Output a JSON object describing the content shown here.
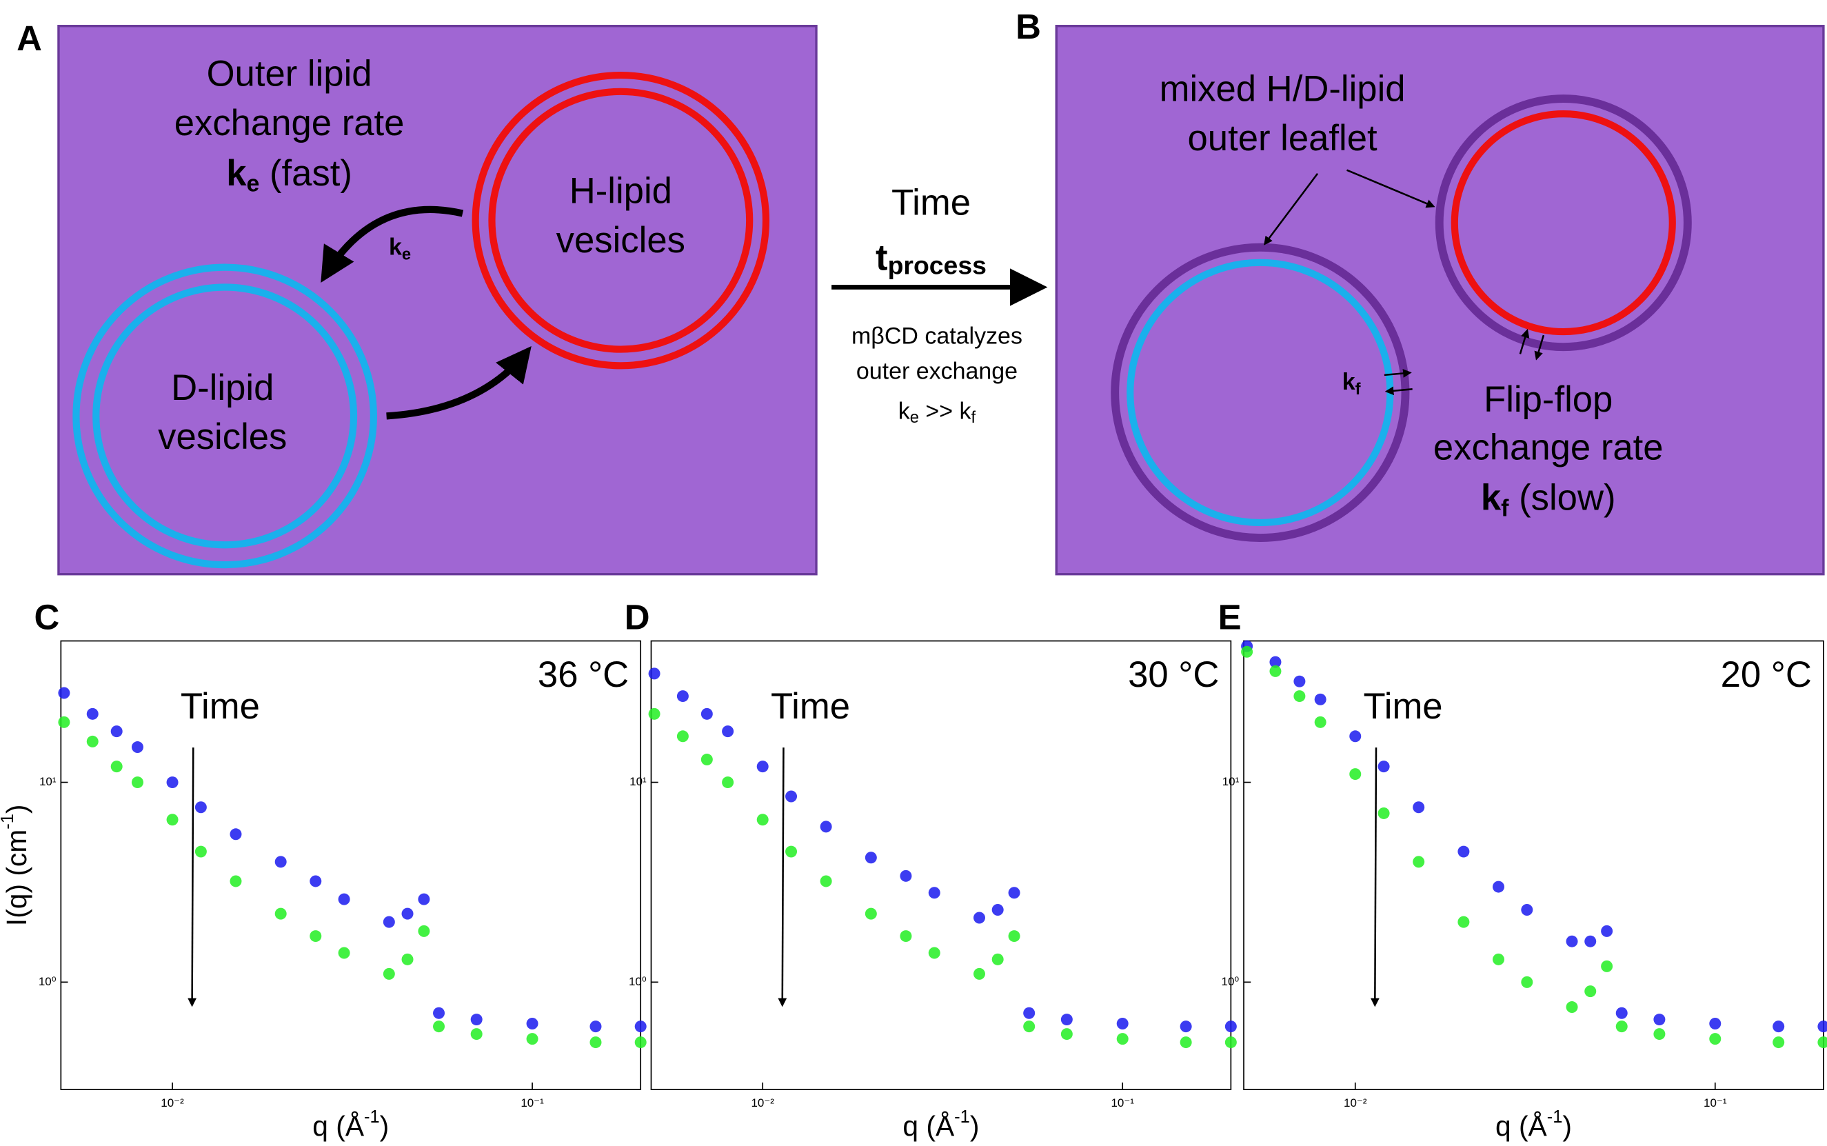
{
  "panel_a": {
    "label": "A",
    "title_lines": [
      "Outer lipid",
      "exchange rate"
    ],
    "rate": {
      "symbol": "k",
      "subscript": "e",
      "text": " (fast)"
    },
    "arrow_label": {
      "symbol": "k",
      "subscript": "e"
    },
    "vesicles": [
      {
        "lines": [
          "H-lipid",
          "vesicles"
        ]
      },
      {
        "lines": [
          "D-lipid",
          "vesicles"
        ]
      }
    ]
  },
  "process": {
    "title": "Time",
    "symbol": "t",
    "subscript": "process",
    "notes": [
      "mβCD catalyzes",
      "outer exchange"
    ],
    "relation": {
      "left": "k",
      "left_sub": "e",
      "op": " >> ",
      "right": "k",
      "right_sub": "f"
    }
  },
  "panel_b": {
    "label": "B",
    "leaflet_lines": [
      "mixed H/D-lipid",
      "outer leaflet"
    ],
    "arrow_label": {
      "symbol": "k",
      "subscript": "f"
    },
    "rate_lines": [
      "Flip-flop",
      "exchange rate"
    ],
    "rate": {
      "symbol": "k",
      "subscript": "f",
      "text": " (slow)"
    }
  },
  "chart_data": [
    {
      "type": "scatter",
      "panel_label": "C",
      "annotation": "Time",
      "temperature": "36 °C",
      "ylabel": {
        "text": "I(q) (cm",
        "sup": "-1",
        "end": ")"
      },
      "xlabel": {
        "text": "q (Å",
        "sup": "-1",
        "end": ")"
      },
      "x": [
        0.005,
        0.006,
        0.007,
        0.008,
        0.01,
        0.012,
        0.015,
        0.02,
        0.025,
        0.03,
        0.04,
        0.045,
        0.05,
        0.055,
        0.07,
        0.1,
        0.15,
        0.2
      ],
      "series": [
        {
          "color": "#1a1aee",
          "values": [
            28,
            22,
            18,
            15,
            10,
            7.5,
            5.5,
            4,
            3.2,
            2.6,
            2,
            2.2,
            2.6,
            0.7,
            0.65,
            0.62,
            0.6,
            0.6
          ]
        },
        {
          "color": "#22ee22",
          "values": [
            20,
            16,
            12,
            10,
            6.5,
            4.5,
            3.2,
            2.2,
            1.7,
            1.4,
            1.1,
            1.3,
            1.8,
            0.6,
            0.55,
            0.52,
            0.5,
            0.5
          ]
        }
      ],
      "xlim": [
        0.0049,
        0.2
      ],
      "ylim": [
        0.29,
        51
      ],
      "xlog": true,
      "ylog": true,
      "xticks": [
        {
          "value": 0.01,
          "label": "10⁻²"
        },
        {
          "value": 0.1,
          "label": "10⁻¹"
        }
      ],
      "yticks": [
        {
          "value": 1,
          "label": "10⁰"
        },
        {
          "value": 10,
          "label": "10¹"
        }
      ]
    },
    {
      "type": "scatter",
      "panel_label": "D",
      "annotation": "Time",
      "temperature": "30 °C",
      "xlabel": {
        "text": "q (Å",
        "sup": "-1",
        "end": ")"
      },
      "x": [
        0.005,
        0.006,
        0.007,
        0.008,
        0.01,
        0.012,
        0.015,
        0.02,
        0.025,
        0.03,
        0.04,
        0.045,
        0.05,
        0.055,
        0.07,
        0.1,
        0.15,
        0.2
      ],
      "series": [
        {
          "color": "#1a1aee",
          "values": [
            35,
            27,
            22,
            18,
            12,
            8.5,
            6,
            4.2,
            3.4,
            2.8,
            2.1,
            2.3,
            2.8,
            0.7,
            0.65,
            0.62,
            0.6,
            0.6
          ]
        },
        {
          "color": "#22ee22",
          "values": [
            22,
            17,
            13,
            10,
            6.5,
            4.5,
            3.2,
            2.2,
            1.7,
            1.4,
            1.1,
            1.3,
            1.7,
            0.6,
            0.55,
            0.52,
            0.5,
            0.5
          ]
        }
      ],
      "xlim": [
        0.0049,
        0.2
      ],
      "ylim": [
        0.29,
        51
      ],
      "xlog": true,
      "ylog": true,
      "xticks": [
        {
          "value": 0.01,
          "label": "10⁻²"
        },
        {
          "value": 0.1,
          "label": "10⁻¹"
        }
      ],
      "yticks": [
        {
          "value": 1,
          "label": "10⁰"
        },
        {
          "value": 10,
          "label": "10¹"
        }
      ]
    },
    {
      "type": "scatter",
      "panel_label": "E",
      "annotation": "Time",
      "temperature": "20 °C",
      "xlabel": {
        "text": "q (Å",
        "sup": "-1",
        "end": ")"
      },
      "x": [
        0.005,
        0.006,
        0.007,
        0.008,
        0.01,
        0.012,
        0.015,
        0.02,
        0.025,
        0.03,
        0.04,
        0.045,
        0.05,
        0.055,
        0.07,
        0.1,
        0.15,
        0.2
      ],
      "series": [
        {
          "color": "#1a1aee",
          "values": [
            48,
            40,
            32,
            26,
            17,
            12,
            7.5,
            4.5,
            3,
            2.3,
            1.6,
            1.6,
            1.8,
            0.7,
            0.65,
            0.62,
            0.6,
            0.6
          ]
        },
        {
          "color": "#22ee22",
          "values": [
            45,
            36,
            27,
            20,
            11,
            7,
            4,
            2,
            1.3,
            1,
            0.75,
            0.9,
            1.2,
            0.6,
            0.55,
            0.52,
            0.5,
            0.5
          ]
        }
      ],
      "xlim": [
        0.0049,
        0.2
      ],
      "ylim": [
        0.29,
        51
      ],
      "xlog": true,
      "ylog": true,
      "xticks": [
        {
          "value": 0.01,
          "label": "10⁻²"
        },
        {
          "value": 0.1,
          "label": "10⁻¹"
        }
      ],
      "yticks": [
        {
          "value": 1,
          "label": "10⁰"
        },
        {
          "value": 10,
          "label": "10¹"
        }
      ]
    }
  ]
}
